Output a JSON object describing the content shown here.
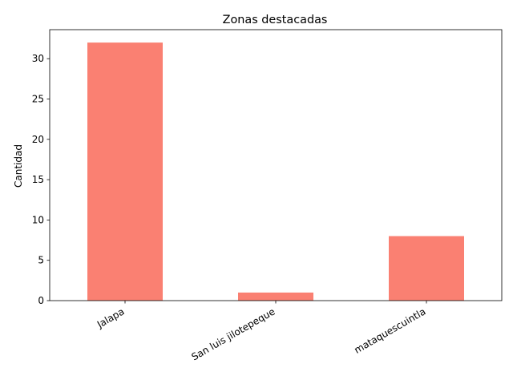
{
  "chart_data": {
    "type": "bar",
    "title": "Zonas destacadas",
    "xlabel": "",
    "ylabel": "Cantidad",
    "categories": [
      "Jalapa",
      "San luis jilotepeque",
      "mataquescuintla"
    ],
    "values": [
      32,
      1,
      8
    ],
    "ylim": [
      0,
      33.6
    ],
    "yticks": [
      0,
      5,
      10,
      15,
      20,
      25,
      30
    ],
    "bar_color": "#fa8072",
    "grid": false,
    "legend": "none"
  }
}
